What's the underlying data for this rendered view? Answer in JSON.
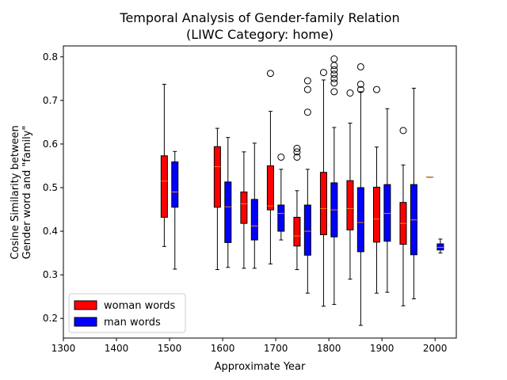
{
  "chart_data": {
    "type": "box",
    "title_line1": "Temporal Analysis of Gender-family Relation",
    "title_line2": "(LIWC Category: home)",
    "xlabel": "Approximate Year",
    "ylabel_line1": "Cosine Similarity between",
    "ylabel_line2": "Gender word and \"family\"",
    "xlim": [
      1300,
      2040
    ],
    "ylim": [
      0.155,
      0.825
    ],
    "x_ticks": [
      1300,
      1400,
      1500,
      1600,
      1700,
      1800,
      1900,
      2000
    ],
    "y_ticks": [
      0.2,
      0.3,
      0.4,
      0.5,
      0.6,
      0.7,
      0.8
    ],
    "legend_position": "lower left",
    "colors": {
      "woman": "#ff0000",
      "man": "#0000ff",
      "median": "#ff7f0e"
    },
    "series": [
      {
        "name": "woman words",
        "key": "woman",
        "boxes": [
          {
            "year": 1500,
            "min": 0.365,
            "q1": 0.432,
            "median": 0.515,
            "q3": 0.573,
            "max": 0.737,
            "fliers": []
          },
          {
            "year": 1600,
            "min": 0.312,
            "q1": 0.455,
            "median": 0.548,
            "q3": 0.594,
            "max": 0.636,
            "fliers": []
          },
          {
            "year": 1650,
            "min": 0.315,
            "q1": 0.418,
            "median": 0.463,
            "q3": 0.49,
            "max": 0.582,
            "fliers": []
          },
          {
            "year": 1700,
            "min": 0.325,
            "q1": 0.449,
            "median": 0.458,
            "q3": 0.55,
            "max": 0.675,
            "fliers": [
              0.762
            ]
          },
          {
            "year": 1750,
            "min": 0.312,
            "q1": 0.366,
            "median": 0.389,
            "q3": 0.432,
            "max": 0.493,
            "fliers": [
              0.57,
              0.582,
              0.59
            ]
          },
          {
            "year": 1800,
            "min": 0.228,
            "q1": 0.392,
            "median": 0.452,
            "q3": 0.535,
            "max": 0.747,
            "fliers": [
              0.764
            ]
          },
          {
            "year": 1850,
            "min": 0.29,
            "q1": 0.403,
            "median": 0.452,
            "q3": 0.516,
            "max": 0.648,
            "fliers": [
              0.717
            ]
          },
          {
            "year": 1900,
            "min": 0.258,
            "q1": 0.375,
            "median": 0.428,
            "q3": 0.501,
            "max": 0.593,
            "fliers": [
              0.725
            ]
          },
          {
            "year": 1950,
            "min": 0.229,
            "q1": 0.37,
            "median": 0.418,
            "q3": 0.466,
            "max": 0.552,
            "fliers": [
              0.631
            ]
          },
          {
            "year": 2000,
            "min": 0.524,
            "q1": 0.524,
            "median": 0.524,
            "q3": 0.524,
            "max": 0.524,
            "fliers": []
          }
        ]
      },
      {
        "name": "man words",
        "key": "man",
        "boxes": [
          {
            "year": 1500,
            "min": 0.313,
            "q1": 0.455,
            "median": 0.49,
            "q3": 0.559,
            "max": 0.583,
            "fliers": []
          },
          {
            "year": 1600,
            "min": 0.317,
            "q1": 0.374,
            "median": 0.456,
            "q3": 0.513,
            "max": 0.615,
            "fliers": []
          },
          {
            "year": 1650,
            "min": 0.315,
            "q1": 0.38,
            "median": 0.412,
            "q3": 0.473,
            "max": 0.602,
            "fliers": []
          },
          {
            "year": 1700,
            "min": 0.38,
            "q1": 0.4,
            "median": 0.441,
            "q3": 0.46,
            "max": 0.542,
            "fliers": [
              0.57
            ]
          },
          {
            "year": 1750,
            "min": 0.258,
            "q1": 0.345,
            "median": 0.4,
            "q3": 0.46,
            "max": 0.542,
            "fliers": [
              0.673,
              0.725,
              0.745
            ]
          },
          {
            "year": 1800,
            "min": 0.232,
            "q1": 0.387,
            "median": 0.449,
            "q3": 0.511,
            "max": 0.638,
            "fliers": [
              0.72,
              0.74,
              0.75,
              0.76,
              0.77,
              0.78,
              0.795
            ]
          },
          {
            "year": 1850,
            "min": 0.184,
            "q1": 0.353,
            "median": 0.42,
            "q3": 0.5,
            "max": 0.72,
            "fliers": [
              0.725,
              0.737,
              0.777
            ]
          },
          {
            "year": 1900,
            "min": 0.26,
            "q1": 0.377,
            "median": 0.441,
            "q3": 0.507,
            "max": 0.681,
            "fliers": []
          },
          {
            "year": 1950,
            "min": 0.245,
            "q1": 0.346,
            "median": 0.426,
            "q3": 0.507,
            "max": 0.728,
            "fliers": []
          },
          {
            "year": 2000,
            "min": 0.35,
            "q1": 0.357,
            "median": 0.363,
            "q3": 0.371,
            "max": 0.382,
            "fliers": []
          }
        ]
      }
    ]
  }
}
